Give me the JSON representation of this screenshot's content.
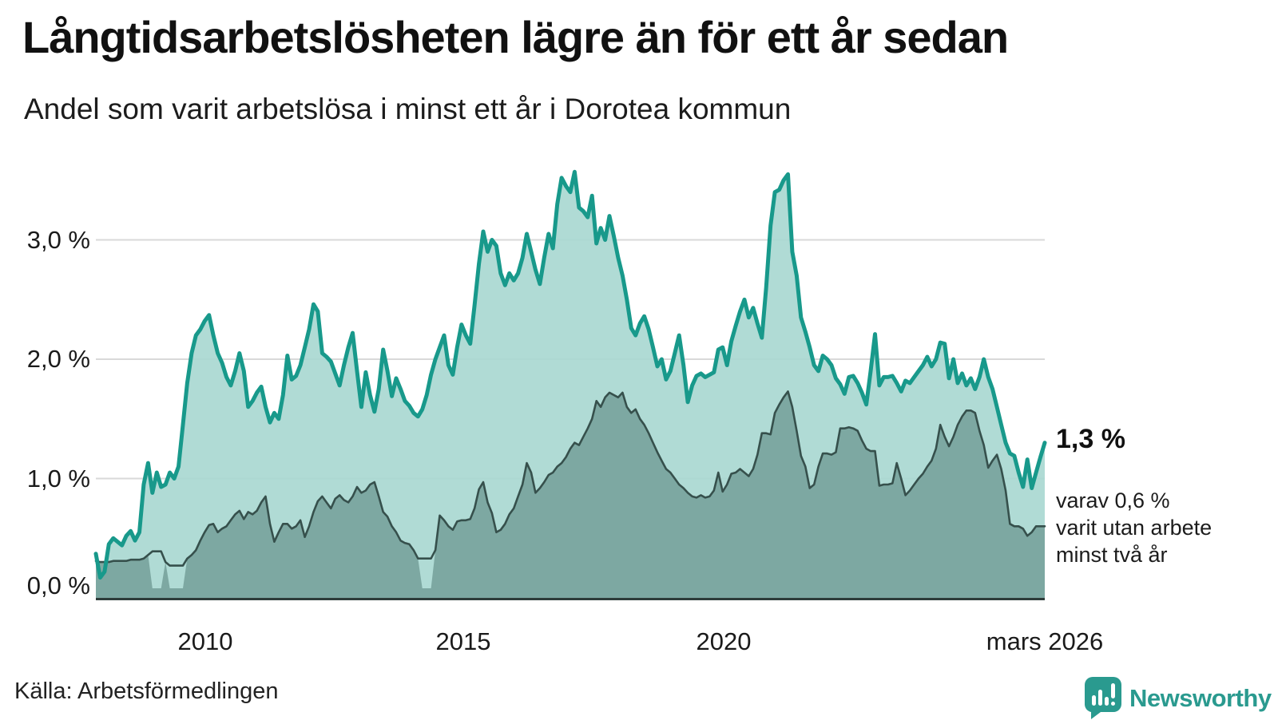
{
  "title": "Långtidsarbetslösheten lägre än för ett år sedan",
  "subtitle": "Andel som varit arbetslösa i minst ett år i Dorotea kommun",
  "source": "Källa: Arbetsförmedlingen",
  "annotation": {
    "value_label": "1,3 %",
    "detail_line1": "varav 0,6 %",
    "detail_line2": "varit utan arbete",
    "detail_line3": "minst två år"
  },
  "logo": {
    "text": "Newsworthy",
    "icon": "bar-chart-speech-bubble-icon",
    "color": "#2a9a8f"
  },
  "y_axis": {
    "labels": [
      "3,0 %",
      "2,0 %",
      "1,0 %",
      "0,0 %"
    ]
  },
  "x_axis": {
    "labels": [
      "2010",
      "2015",
      "2020",
      "mars 2026"
    ]
  },
  "colors": {
    "line_1yr": "#18998b",
    "fill_1yr": "#a9d8d1",
    "line_2yr": "#36504c",
    "fill_2yr": "#7ba69f",
    "gridline": "#d9d9d9",
    "axis": "#2e3c3a",
    "brand": "#2a9a8f"
  },
  "chart_data": {
    "type": "area",
    "title": "Långtidsarbetslösheten lägre än för ett år sedan",
    "subtitle": "Andel som varit arbetslösa i minst ett år i Dorotea kommun",
    "x_start": "2008-01",
    "x_end": "2026-03",
    "frequency": "monthly",
    "unit": "%",
    "ylim": [
      0,
      3.7
    ],
    "grid_values": [
      1,
      2,
      3
    ],
    "y_tick_values": [
      3,
      2,
      1,
      0
    ],
    "x_tick_month_indices": [
      24,
      84,
      144,
      218
    ],
    "legend": "none",
    "last_point_labels": {
      "series1": "1,3 %",
      "series2": "varav 0,6 % varit utan arbete minst två år"
    },
    "series": [
      {
        "name": "Arbetslösa minst ett år",
        "color": "#18998b",
        "fill": "#a9d8d1",
        "values": [
          0.37,
          0.17,
          0.22,
          0.45,
          0.5,
          0.47,
          0.44,
          0.52,
          0.56,
          0.48,
          0.55,
          0.95,
          1.13,
          0.88,
          1.05,
          0.93,
          0.95,
          1.05,
          1.0,
          1.1,
          1.45,
          1.8,
          2.05,
          2.2,
          2.25,
          2.32,
          2.37,
          2.2,
          2.05,
          1.97,
          1.85,
          1.78,
          1.9,
          2.05,
          1.9,
          1.6,
          1.65,
          1.72,
          1.77,
          1.6,
          1.47,
          1.55,
          1.5,
          1.7,
          2.03,
          1.83,
          1.86,
          1.95,
          2.1,
          2.25,
          2.46,
          2.4,
          2.05,
          2.02,
          1.98,
          1.88,
          1.78,
          1.95,
          2.1,
          2.22,
          1.9,
          1.6,
          1.89,
          1.7,
          1.56,
          1.75,
          2.08,
          1.9,
          1.69,
          1.84,
          1.75,
          1.65,
          1.61,
          1.55,
          1.52,
          1.58,
          1.7,
          1.87,
          2.0,
          2.1,
          2.2,
          1.95,
          1.87,
          2.1,
          2.29,
          2.2,
          2.13,
          2.45,
          2.8,
          3.07,
          2.9,
          3.0,
          2.95,
          2.72,
          2.62,
          2.72,
          2.66,
          2.72,
          2.85,
          3.05,
          2.9,
          2.75,
          2.63,
          2.85,
          3.05,
          2.93,
          3.3,
          3.52,
          3.45,
          3.4,
          3.57,
          3.27,
          3.24,
          3.19,
          3.37,
          2.97,
          3.1,
          3.0,
          3.2,
          3.03,
          2.85,
          2.7,
          2.5,
          2.26,
          2.2,
          2.3,
          2.36,
          2.25,
          2.1,
          1.94,
          2.0,
          1.83,
          1.9,
          2.05,
          2.2,
          1.95,
          1.64,
          1.78,
          1.86,
          1.88,
          1.85,
          1.87,
          1.89,
          2.08,
          2.1,
          1.95,
          2.15,
          2.28,
          2.4,
          2.5,
          2.35,
          2.43,
          2.3,
          2.18,
          2.6,
          3.12,
          3.4,
          3.42,
          3.5,
          3.55,
          2.9,
          2.7,
          2.35,
          2.23,
          2.1,
          1.95,
          1.9,
          2.03,
          2.0,
          1.95,
          1.84,
          1.79,
          1.71,
          1.85,
          1.86,
          1.8,
          1.72,
          1.62,
          1.9,
          2.21,
          1.78,
          1.85,
          1.85,
          1.86,
          1.8,
          1.73,
          1.82,
          1.8,
          1.85,
          1.9,
          1.95,
          2.02,
          1.94,
          2.0,
          2.14,
          2.13,
          1.84,
          2.0,
          1.8,
          1.88,
          1.78,
          1.84,
          1.75,
          1.85,
          2.0,
          1.85,
          1.75,
          1.6,
          1.45,
          1.3,
          1.21,
          1.19,
          1.05,
          0.93,
          1.16,
          0.92,
          1.05,
          1.18,
          1.3
        ]
      },
      {
        "name": "Arbetslösa minst två år",
        "color": "#36504c",
        "fill": "#7ba69f",
        "fill_gap_indices": [
          [
            13,
            15
          ],
          [
            17,
            20
          ],
          [
            75,
            77
          ]
        ],
        "values": [
          0.31,
          0.3,
          0.3,
          0.3,
          0.31,
          0.31,
          0.31,
          0.31,
          0.32,
          0.32,
          0.32,
          0.33,
          0.36,
          0.39,
          0.39,
          0.39,
          0.3,
          0.27,
          0.27,
          0.27,
          0.27,
          0.33,
          0.36,
          0.4,
          0.48,
          0.55,
          0.61,
          0.62,
          0.55,
          0.58,
          0.6,
          0.65,
          0.7,
          0.73,
          0.66,
          0.72,
          0.7,
          0.73,
          0.8,
          0.85,
          0.62,
          0.47,
          0.55,
          0.62,
          0.62,
          0.58,
          0.6,
          0.65,
          0.51,
          0.6,
          0.72,
          0.81,
          0.85,
          0.8,
          0.75,
          0.83,
          0.86,
          0.82,
          0.8,
          0.85,
          0.93,
          0.88,
          0.9,
          0.95,
          0.97,
          0.85,
          0.72,
          0.68,
          0.6,
          0.55,
          0.48,
          0.46,
          0.45,
          0.4,
          0.33,
          0.33,
          0.33,
          0.33,
          0.4,
          0.69,
          0.65,
          0.6,
          0.57,
          0.64,
          0.65,
          0.65,
          0.66,
          0.75,
          0.91,
          0.97,
          0.8,
          0.71,
          0.55,
          0.57,
          0.62,
          0.7,
          0.75,
          0.85,
          0.95,
          1.13,
          1.05,
          0.88,
          0.92,
          0.97,
          1.03,
          1.05,
          1.1,
          1.13,
          1.18,
          1.25,
          1.3,
          1.28,
          1.35,
          1.42,
          1.5,
          1.65,
          1.6,
          1.68,
          1.72,
          1.7,
          1.68,
          1.72,
          1.6,
          1.55,
          1.58,
          1.5,
          1.45,
          1.38,
          1.3,
          1.22,
          1.15,
          1.08,
          1.05,
          1.0,
          0.95,
          0.92,
          0.88,
          0.85,
          0.84,
          0.86,
          0.84,
          0.85,
          0.9,
          1.05,
          0.89,
          0.95,
          1.04,
          1.05,
          1.08,
          1.05,
          1.02,
          1.08,
          1.2,
          1.38,
          1.38,
          1.37,
          1.55,
          1.62,
          1.68,
          1.73,
          1.6,
          1.4,
          1.19,
          1.1,
          0.92,
          0.95,
          1.1,
          1.21,
          1.21,
          1.2,
          1.22,
          1.42,
          1.42,
          1.43,
          1.42,
          1.4,
          1.32,
          1.25,
          1.23,
          1.23,
          0.94,
          0.95,
          0.95,
          0.96,
          1.13,
          1.0,
          0.86,
          0.9,
          0.95,
          1.0,
          1.04,
          1.1,
          1.15,
          1.25,
          1.45,
          1.35,
          1.27,
          1.35,
          1.45,
          1.52,
          1.57,
          1.57,
          1.55,
          1.4,
          1.28,
          1.09,
          1.15,
          1.2,
          1.08,
          0.9,
          0.62,
          0.6,
          0.6,
          0.58,
          0.52,
          0.55,
          0.6,
          0.6,
          0.6
        ]
      }
    ]
  }
}
